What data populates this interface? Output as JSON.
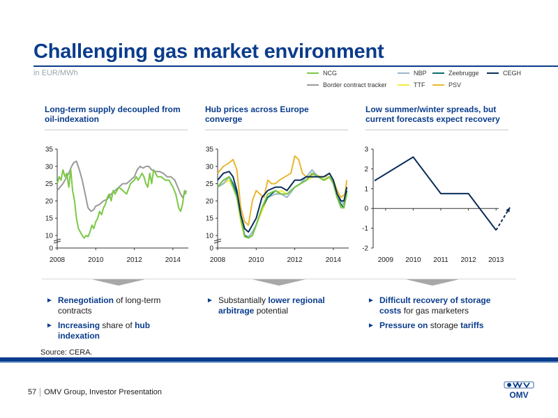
{
  "title": "Challenging gas market environment",
  "unit": "in EUR/MWh",
  "legend": [
    {
      "name": "NCG",
      "color": "#7ac943"
    },
    {
      "name": "NBP",
      "color": "#9cb4cc"
    },
    {
      "name": "Zeebrugge",
      "color": "#0e6e6e"
    },
    {
      "name": "CEGH",
      "color": "#0a2d5c"
    },
    {
      "name": "Border contract tracker",
      "color": "#999999"
    },
    {
      "name": "TTF",
      "color": "#f5ec3c"
    },
    {
      "name": "PSV",
      "color": "#e8b830"
    }
  ],
  "columns": [
    {
      "heading": "Long-term supply decoupled from oil-indexation",
      "bullets": [
        {
          "bold": "Renegotiation",
          "rest": " of long-term contracts"
        },
        {
          "bold": "Increasing",
          "rest": " share of ",
          "bold2": "hub indexation"
        }
      ]
    },
    {
      "heading": "Hub prices across Europe converge",
      "bullets": [
        {
          "pre": "Substantially ",
          "bold": "lower regional arbitrage",
          "rest": " potential"
        }
      ]
    },
    {
      "heading": "Low summer/winter spreads, but current forecasts expect recovery",
      "bullets": [
        {
          "bold": "Difficult recovery of storage costs",
          "rest": " for gas marketers"
        },
        {
          "bold": "Pressure on",
          "rest": " storage ",
          "bold2": "tariffs"
        }
      ]
    }
  ],
  "source": "Source: CERA.",
  "footer": {
    "page": "57",
    "text": "OMV Group, Investor Presentation"
  },
  "logo_text": "OMV",
  "chart_data": [
    {
      "type": "line",
      "ylim": [
        0,
        35
      ],
      "yticks": [
        "35",
        "30",
        "25",
        "20",
        "15",
        "10",
        "0"
      ],
      "xticks": [
        "2008",
        "2010",
        "2012",
        "2014"
      ],
      "xlim": [
        2008,
        2014.8
      ],
      "series": [
        {
          "name": "Border contract tracker",
          "color": "#999999",
          "x": [
            2008,
            2008.15,
            2008.3,
            2008.45,
            2008.6,
            2008.75,
            2008.85,
            2009,
            2009.15,
            2009.3,
            2009.45,
            2009.6,
            2009.75,
            2009.9,
            2010,
            2010.2,
            2010.4,
            2010.6,
            2010.8,
            2011,
            2011.2,
            2011.4,
            2011.6,
            2011.8,
            2012,
            2012.15,
            2012.3,
            2012.45,
            2012.6,
            2012.75,
            2012.9,
            2013.1,
            2013.3,
            2013.5,
            2013.7,
            2013.9,
            2014.1,
            2014.25,
            2014.4,
            2014.5,
            2014.6,
            2014.7
          ],
          "y": [
            23,
            24,
            25,
            26.5,
            28,
            30,
            31,
            31.5,
            29,
            26,
            22,
            18,
            17,
            17.5,
            18.5,
            19,
            20,
            20.5,
            22,
            23,
            24,
            25,
            25,
            26,
            27,
            29,
            30,
            29.5,
            30,
            30,
            29,
            28.5,
            28.5,
            28,
            27,
            27,
            26,
            24,
            22,
            21,
            22,
            23
          ]
        },
        {
          "name": "NCG",
          "color": "#7ac943",
          "x": [
            2008,
            2008.1,
            2008.2,
            2008.3,
            2008.4,
            2008.5,
            2008.6,
            2008.7,
            2008.8,
            2008.9,
            2009,
            2009.1,
            2009.2,
            2009.3,
            2009.4,
            2009.5,
            2009.6,
            2009.7,
            2009.8,
            2009.9,
            2010,
            2010.1,
            2010.2,
            2010.3,
            2010.4,
            2010.5,
            2010.6,
            2010.7,
            2010.8,
            2010.9,
            2011,
            2011.2,
            2011.4,
            2011.6,
            2011.8,
            2012,
            2012.1,
            2012.2,
            2012.3,
            2012.4,
            2012.5,
            2012.6,
            2012.7,
            2012.8,
            2012.9,
            2013,
            2013.2,
            2013.4,
            2013.6,
            2013.8,
            2014,
            2014.15,
            2014.3,
            2014.4,
            2014.5,
            2014.6,
            2014.7
          ],
          "y": [
            25,
            27,
            26,
            29,
            27,
            28,
            24,
            29,
            23,
            20,
            15,
            12,
            11,
            10,
            8,
            10,
            9,
            11,
            13,
            12,
            14,
            15,
            17,
            16,
            18,
            19,
            21,
            22,
            20,
            23,
            22,
            24,
            23,
            22,
            25,
            26,
            27,
            26,
            27,
            28,
            27,
            25,
            24,
            28,
            25,
            29,
            27,
            27,
            26,
            26,
            24,
            22,
            18,
            17,
            19,
            23,
            22
          ]
        }
      ]
    },
    {
      "type": "line",
      "ylim": [
        0,
        35
      ],
      "yticks": [
        "35",
        "30",
        "25",
        "20",
        "15",
        "10",
        "0"
      ],
      "xticks": [
        "2008",
        "2010",
        "2012",
        "2014"
      ],
      "xlim": [
        2008,
        2014.8
      ],
      "series": [
        {
          "name": "PSV",
          "color": "#e8b830",
          "x": [
            2008,
            2008.3,
            2008.6,
            2008.8,
            2009,
            2009.2,
            2009.4,
            2009.6,
            2009.8,
            2010,
            2010.2,
            2010.4,
            2010.6,
            2010.8,
            2011,
            2011.2,
            2011.5,
            2011.8,
            2012,
            2012.2,
            2012.4,
            2012.6,
            2012.8,
            2013,
            2013.3,
            2013.6,
            2013.8,
            2014,
            2014.2,
            2014.4,
            2014.6,
            2014.7
          ],
          "y": [
            28,
            30,
            31,
            32,
            29,
            18,
            14,
            13,
            20,
            23,
            22,
            21,
            26,
            25,
            25,
            26,
            27,
            28,
            33,
            32,
            28,
            27,
            27,
            28,
            27,
            27,
            28,
            26,
            23,
            21,
            22,
            26
          ]
        },
        {
          "name": "TTF",
          "color": "#f5ec3c",
          "x": [
            2008,
            2008.3,
            2008.6,
            2008.8,
            2009,
            2009.2,
            2009.4,
            2009.6,
            2009.8,
            2010,
            2010.3,
            2010.6,
            2011,
            2011.3,
            2011.6,
            2012,
            2012.3,
            2012.6,
            2013,
            2013.3,
            2013.6,
            2013.8,
            2014,
            2014.2,
            2014.4,
            2014.55,
            2014.7
          ],
          "y": [
            24,
            25,
            26,
            24,
            21,
            14,
            9,
            8,
            10,
            13,
            17,
            21,
            22,
            23,
            22,
            24,
            25,
            26,
            27,
            27,
            26,
            27,
            25,
            21,
            19,
            19,
            23
          ]
        },
        {
          "name": "NBP",
          "color": "#9cb4cc",
          "x": [
            2008,
            2008.3,
            2008.6,
            2008.8,
            2009,
            2009.2,
            2009.4,
            2009.6,
            2009.8,
            2010,
            2010.3,
            2010.6,
            2011,
            2011.3,
            2011.6,
            2012,
            2012.3,
            2012.6,
            2012.9,
            2013.2,
            2013.5,
            2013.8,
            2014,
            2014.2,
            2014.4,
            2014.55,
            2014.7
          ],
          "y": [
            24,
            25,
            27,
            25,
            22,
            15,
            10,
            9,
            11,
            13,
            18,
            21,
            22,
            22,
            21,
            24,
            25,
            27,
            29,
            27,
            26,
            27,
            25,
            21,
            20,
            19,
            23
          ]
        },
        {
          "name": "Zeebrugge",
          "color": "#0e6e6e",
          "x": [
            2008,
            2008.3,
            2008.6,
            2008.8,
            2009,
            2009.2,
            2009.4,
            2009.6,
            2009.8,
            2010,
            2010.3,
            2010.6,
            2011,
            2011.3,
            2011.6,
            2012,
            2012.3,
            2012.6,
            2012.9,
            2013.2,
            2013.5,
            2013.8,
            2014,
            2014.2,
            2014.4,
            2014.55,
            2014.7
          ],
          "y": [
            24,
            26,
            27,
            25,
            22,
            15,
            10,
            8,
            10,
            13,
            18,
            21,
            23,
            22,
            22,
            24,
            25,
            26,
            28,
            27,
            26,
            27,
            25,
            21,
            19,
            18,
            23
          ]
        },
        {
          "name": "NCG",
          "color": "#7ac943",
          "x": [
            2008,
            2008.3,
            2008.6,
            2008.8,
            2009,
            2009.2,
            2009.4,
            2009.6,
            2009.8,
            2010,
            2010.3,
            2010.6,
            2011,
            2011.3,
            2011.6,
            2012,
            2012.3,
            2012.6,
            2012.9,
            2013.2,
            2013.5,
            2013.8,
            2014,
            2014.2,
            2014.4,
            2014.55,
            2014.7
          ],
          "y": [
            24,
            26,
            27,
            24,
            21,
            15,
            9,
            8,
            10,
            13,
            18,
            22,
            23,
            22,
            22,
            24,
            25,
            26,
            28,
            27,
            26,
            27,
            25,
            21,
            18,
            18,
            22
          ]
        },
        {
          "name": "CEGH",
          "color": "#0a2d5c",
          "x": [
            2008,
            2008.3,
            2008.6,
            2008.8,
            2009,
            2009.2,
            2009.4,
            2009.6,
            2009.8,
            2010,
            2010.3,
            2010.6,
            2011,
            2011.3,
            2011.6,
            2012,
            2012.3,
            2012.6,
            2012.9,
            2013.2,
            2013.5,
            2013.8,
            2014,
            2014.2,
            2014.4,
            2014.55,
            2014.7
          ],
          "y": [
            26,
            28,
            28.5,
            27,
            23,
            16,
            12,
            11,
            13,
            15,
            21,
            23,
            24,
            24,
            23,
            26,
            26,
            27,
            27,
            27,
            27,
            28,
            26,
            22,
            20,
            20,
            24
          ]
        }
      ]
    },
    {
      "type": "line",
      "ylim": [
        -2,
        3
      ],
      "yticks": [
        "3",
        "2",
        "1",
        "0",
        "-1",
        "-2"
      ],
      "xticks": [
        "2009",
        "2010",
        "2011",
        "2012",
        "2013"
      ],
      "xlim": [
        2008.55,
        2013.6
      ],
      "series": [
        {
          "name": "Summer/winter spread",
          "color": "#0a2d5c",
          "x": [
            2008.6,
            2010,
            2011,
            2012,
            2013
          ],
          "y": [
            1.4,
            2.6,
            0.75,
            0.75,
            -1.1
          ]
        },
        {
          "name": "Forecast",
          "color": "#0a2d5c",
          "dashed": true,
          "x": [
            2013,
            2013.5
          ],
          "y": [
            -1.1,
            0.05
          ]
        }
      ]
    }
  ]
}
